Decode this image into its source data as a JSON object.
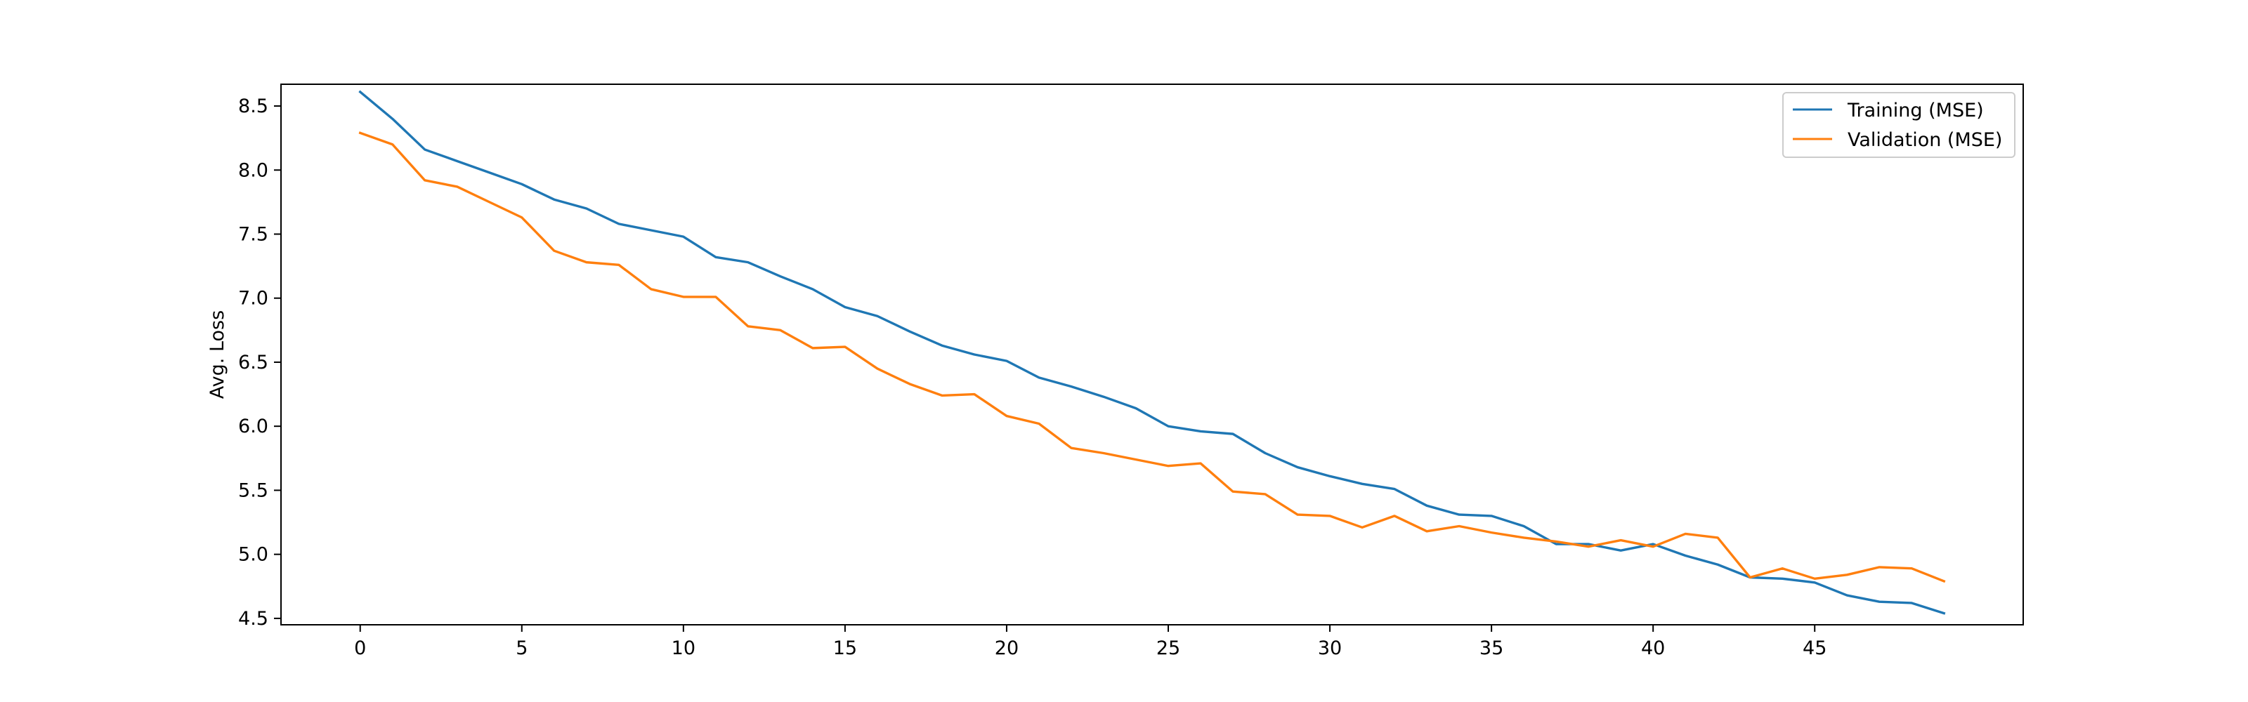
{
  "chart_data": {
    "type": "line",
    "title": "",
    "xlabel": "",
    "ylabel": "Avg. Loss",
    "xlim": [
      -2.45,
      51.45
    ],
    "ylim": [
      4.45,
      8.67
    ],
    "xticks": [
      0,
      5,
      10,
      15,
      20,
      25,
      30,
      35,
      40,
      45
    ],
    "yticks": [
      4.5,
      5.0,
      5.5,
      6.0,
      6.5,
      7.0,
      7.5,
      8.0,
      8.5
    ],
    "ytick_labels": [
      "4.5",
      "5.0",
      "5.5",
      "6.0",
      "6.5",
      "7.0",
      "7.5",
      "8.0",
      "8.5"
    ],
    "grid": false,
    "legend_position": "top-right",
    "x": [
      0,
      1,
      2,
      3,
      4,
      5,
      6,
      7,
      8,
      9,
      10,
      11,
      12,
      13,
      14,
      15,
      16,
      17,
      18,
      19,
      20,
      21,
      22,
      23,
      24,
      25,
      26,
      27,
      28,
      29,
      30,
      31,
      32,
      33,
      34,
      35,
      36,
      37,
      38,
      39,
      40,
      41,
      42,
      43,
      44,
      45,
      46,
      47,
      48,
      49
    ],
    "series": [
      {
        "name": "Training (MSE)",
        "color": "#1f77b4",
        "values": [
          8.61,
          8.4,
          8.16,
          8.07,
          7.98,
          7.89,
          7.77,
          7.7,
          7.58,
          7.53,
          7.48,
          7.32,
          7.28,
          7.17,
          7.07,
          6.93,
          6.86,
          6.74,
          6.63,
          6.56,
          6.51,
          6.38,
          6.31,
          6.23,
          6.14,
          6.0,
          5.96,
          5.94,
          5.79,
          5.68,
          5.61,
          5.55,
          5.51,
          5.38,
          5.31,
          5.3,
          5.22,
          5.08,
          5.08,
          5.03,
          5.08,
          4.99,
          4.92,
          4.82,
          4.81,
          4.78,
          4.68,
          4.63,
          4.62,
          4.54
        ]
      },
      {
        "name": "Validation (MSE)",
        "color": "#ff7f0e",
        "values": [
          8.29,
          8.2,
          7.92,
          7.87,
          7.75,
          7.63,
          7.37,
          7.28,
          7.26,
          7.07,
          7.01,
          7.01,
          6.78,
          6.75,
          6.61,
          6.62,
          6.45,
          6.33,
          6.24,
          6.25,
          6.08,
          6.02,
          5.83,
          5.79,
          5.74,
          5.69,
          5.71,
          5.49,
          5.47,
          5.31,
          5.3,
          5.21,
          5.3,
          5.18,
          5.22,
          5.17,
          5.13,
          5.1,
          5.06,
          5.11,
          5.06,
          5.16,
          5.13,
          4.82,
          4.89,
          4.81,
          4.84,
          4.9,
          4.89,
          4.79
        ]
      }
    ]
  }
}
